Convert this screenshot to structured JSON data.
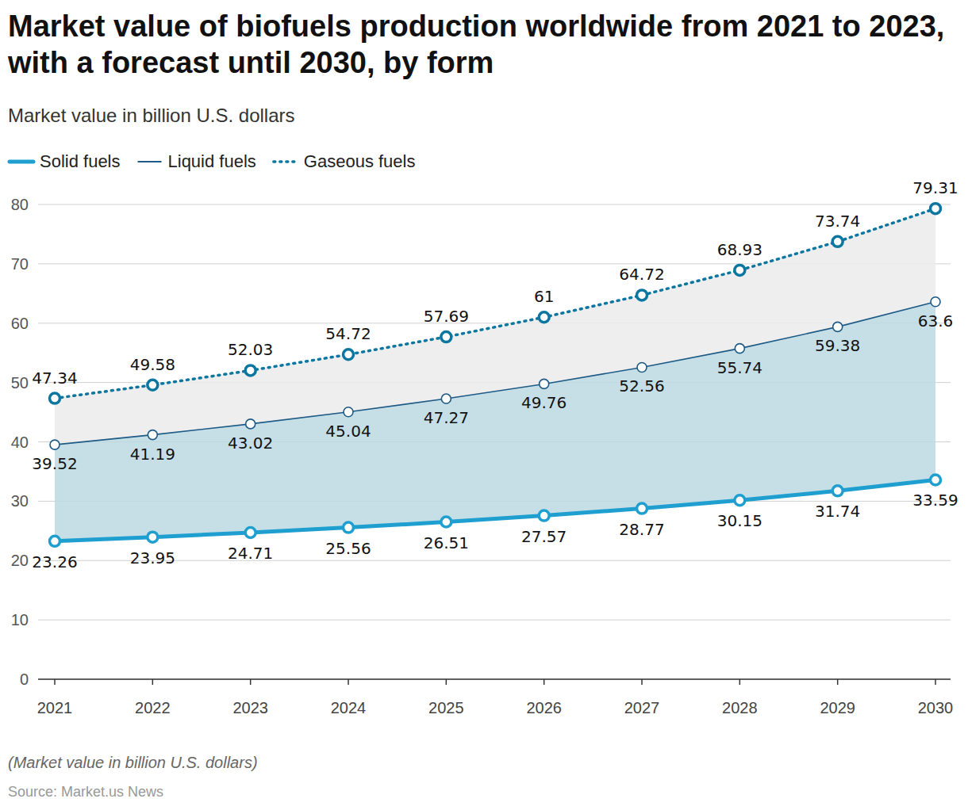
{
  "chart_data": {
    "type": "line",
    "title": "Market value of biofuels production worldwide from 2021 to 2023, with a forecast until 2030, by form",
    "subtitle": "Market value in billion U.S. dollars",
    "note": "(Market value in billion U.S. dollars)",
    "source": "Source: Market.us News",
    "categories": [
      "2021",
      "2022",
      "2023",
      "2024",
      "2025",
      "2026",
      "2027",
      "2028",
      "2029",
      "2030"
    ],
    "series": [
      {
        "name": "Solid fuels",
        "color": "#1f9fd0",
        "line_style": "solid",
        "marker": "circle",
        "values": [
          23.26,
          23.95,
          24.71,
          25.56,
          26.51,
          27.57,
          28.77,
          30.15,
          31.74,
          33.59
        ]
      },
      {
        "name": "Liquid fuels",
        "color": "#1d5a85",
        "line_style": "solid",
        "marker": "circle",
        "values": [
          39.52,
          41.19,
          43.02,
          45.04,
          47.27,
          49.76,
          52.56,
          55.74,
          59.38,
          63.6
        ]
      },
      {
        "name": "Gaseous fuels",
        "color": "#0b76a0",
        "line_style": "dotted",
        "marker": "circle",
        "values": [
          47.34,
          49.58,
          52.03,
          54.72,
          57.69,
          61,
          64.72,
          68.93,
          73.74,
          79.31
        ]
      }
    ],
    "ylim": [
      0,
      80
    ],
    "yticks": [
      0,
      10,
      20,
      30,
      40,
      50,
      60,
      70,
      80
    ],
    "grid": true,
    "legend": "top",
    "data_labels": true
  }
}
